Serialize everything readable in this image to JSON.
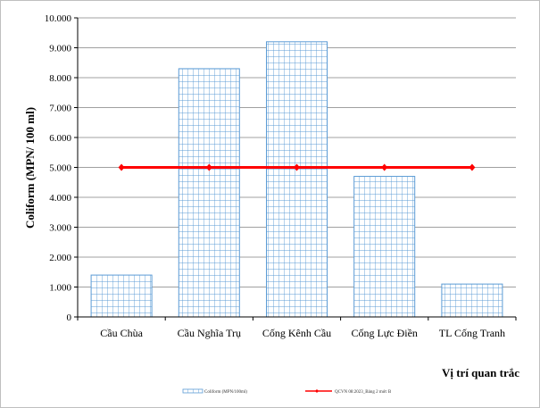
{
  "chart_data": {
    "type": "bar",
    "categories": [
      "Cầu Chùa",
      "Cầu Nghĩa Trụ",
      "Cống Kênh Cầu",
      "Cống Lực Điền",
      "TL Cống Tranh"
    ],
    "series": [
      {
        "name": "Coliform (MPN/100ml)",
        "values": [
          1400,
          8300,
          9200,
          4700,
          1100
        ],
        "color": "#4a90d9"
      },
      {
        "name": "QCVN 08:2023_Bảng 2 mức B",
        "type": "line",
        "values": [
          5000,
          5000,
          5000,
          5000,
          5000
        ],
        "color": "#ff0000"
      }
    ],
    "title": "",
    "xlabel": "Vị trí quan trắc",
    "ylabel": "Coliform (MPN/ 100 ml)",
    "ylim": [
      0,
      10000
    ],
    "yticks": [
      0,
      1000,
      2000,
      3000,
      4000,
      5000,
      6000,
      7000,
      8000,
      9000,
      10000
    ],
    "ytick_labels": [
      "0",
      "1.000",
      "2.000",
      "3.000",
      "4.000",
      "5.000",
      "6.000",
      "7.000",
      "8.000",
      "9.000",
      "10.000"
    ],
    "grid": true,
    "legend_position": "bottom"
  }
}
